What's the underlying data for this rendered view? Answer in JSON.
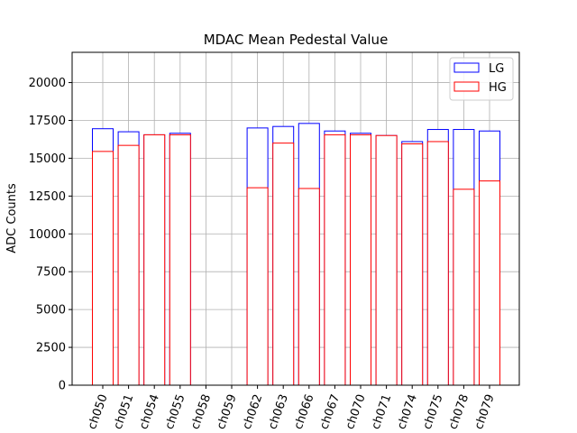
{
  "chart_data": {
    "type": "bar",
    "title": "MDAC Mean Pedestal Value",
    "xlabel": "",
    "ylabel": "ADC Counts",
    "ylim": [
      0,
      22000
    ],
    "yticks": [
      0,
      2500,
      5000,
      7500,
      10000,
      12500,
      15000,
      17500,
      20000
    ],
    "grid": true,
    "legend_position": "top-right",
    "categories": [
      "ch050",
      "ch051",
      "ch054",
      "ch055",
      "ch058",
      "ch059",
      "ch062",
      "ch063",
      "ch066",
      "ch067",
      "ch070",
      "ch071",
      "ch074",
      "ch075",
      "ch078",
      "ch079"
    ],
    "series": [
      {
        "name": "LG",
        "color": "#0000ff",
        "values": [
          16950,
          16750,
          16550,
          16650,
          0,
          0,
          17000,
          17100,
          17300,
          16800,
          16650,
          16500,
          16100,
          16900,
          16900,
          16800
        ]
      },
      {
        "name": "HG",
        "color": "#ff0000",
        "values": [
          15450,
          15850,
          16550,
          16550,
          0,
          0,
          13050,
          16000,
          13000,
          16550,
          16550,
          16500,
          15950,
          16100,
          12950,
          13500
        ]
      }
    ]
  }
}
